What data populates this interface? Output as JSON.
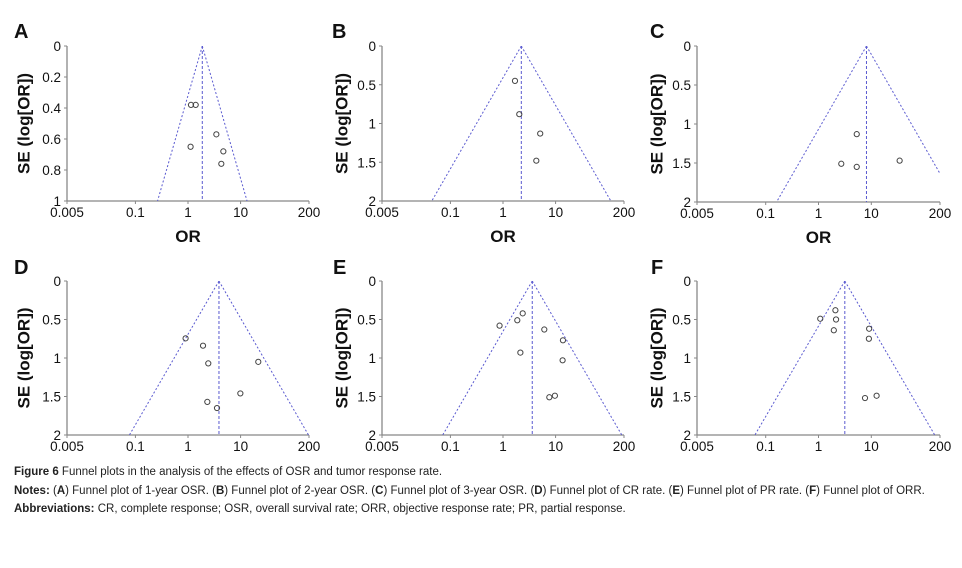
{
  "colors": {
    "funnel": "#5a5ad0",
    "axis": "#888888",
    "point": "#444444",
    "text": "#111111"
  },
  "chart_data": [
    {
      "type": "scatter",
      "panel": "A",
      "xlabel": "OR",
      "ylabel": "SE (log[OR])",
      "x_scale": "log",
      "y_inverted": true,
      "xlim": [
        0.005,
        200
      ],
      "ylim": [
        0,
        1
      ],
      "xticks": [
        "0.005",
        "0.1",
        "1",
        "10",
        "200"
      ],
      "yticks": [
        "0",
        "0.2",
        "0.4",
        "0.6",
        "0.8",
        "1"
      ],
      "summary_or": 1.87,
      "points": [
        {
          "or": 1.14,
          "se": 0.38
        },
        {
          "or": 1.4,
          "se": 0.38
        },
        {
          "or": 3.46,
          "se": 0.57
        },
        {
          "or": 1.12,
          "se": 0.65
        },
        {
          "or": 4.7,
          "se": 0.68
        },
        {
          "or": 4.3,
          "se": 0.76
        }
      ]
    },
    {
      "type": "scatter",
      "panel": "B",
      "xlabel": "OR",
      "ylabel": "SE (log[OR])",
      "x_scale": "log",
      "y_inverted": true,
      "xlim": [
        0.005,
        200
      ],
      "ylim": [
        0,
        2
      ],
      "xticks": [
        "0.005",
        "0.1",
        "1",
        "10",
        "200"
      ],
      "yticks": [
        "0",
        "0.5",
        "1",
        "1.5",
        "2"
      ],
      "summary_or": 2.23,
      "points": [
        {
          "or": 1.69,
          "se": 0.45
        },
        {
          "or": 2.04,
          "se": 0.88
        },
        {
          "or": 5.1,
          "se": 1.13
        },
        {
          "or": 4.3,
          "se": 1.48
        }
      ]
    },
    {
      "type": "scatter",
      "panel": "C",
      "xlabel": "OR",
      "ylabel": "SE (log[OR])",
      "x_scale": "log",
      "y_inverted": true,
      "xlim": [
        0.005,
        200
      ],
      "ylim": [
        0,
        2
      ],
      "xticks": [
        "0.005",
        "0.1",
        "1",
        "10",
        "200"
      ],
      "yticks": [
        "0",
        "0.5",
        "1",
        "1.5",
        "2"
      ],
      "summary_or": 8.1,
      "points": [
        {
          "or": 5.3,
          "se": 1.13
        },
        {
          "or": 2.7,
          "se": 1.51
        },
        {
          "or": 5.3,
          "se": 1.55
        },
        {
          "or": 34.4,
          "se": 1.47
        }
      ]
    },
    {
      "type": "scatter",
      "panel": "D",
      "xlabel": "OR",
      "ylabel": "SE (log[OR])",
      "x_scale": "log",
      "y_inverted": true,
      "xlim": [
        0.005,
        200
      ],
      "ylim": [
        0,
        2
      ],
      "xticks": [
        "0.005",
        "0.1",
        "1",
        "10",
        "200"
      ],
      "yticks": [
        "0",
        "0.5",
        "1",
        "1.5",
        "2"
      ],
      "summary_or": 3.88,
      "points": [
        {
          "or": 0.9,
          "se": 0.745
        },
        {
          "or": 1.93,
          "se": 0.84
        },
        {
          "or": 2.43,
          "se": 1.07
        },
        {
          "or": 21.7,
          "se": 1.05
        },
        {
          "or": 9.9,
          "se": 1.46
        },
        {
          "or": 2.33,
          "se": 1.57
        },
        {
          "or": 3.56,
          "se": 1.65
        }
      ]
    },
    {
      "type": "scatter",
      "panel": "E",
      "xlabel": "OR",
      "ylabel": "SE (log[OR])",
      "x_scale": "log",
      "y_inverted": true,
      "xlim": [
        0.005,
        200
      ],
      "ylim": [
        0,
        2
      ],
      "xticks": [
        "0.005",
        "0.1",
        "1",
        "10",
        "200"
      ],
      "yticks": [
        "0",
        "0.5",
        "1",
        "1.5",
        "2"
      ],
      "summary_or": 3.6,
      "points": [
        {
          "or": 0.86,
          "se": 0.58
        },
        {
          "or": 1.87,
          "se": 0.51
        },
        {
          "or": 2.37,
          "se": 0.42
        },
        {
          "or": 2.14,
          "se": 0.93
        },
        {
          "or": 6.1,
          "se": 0.63
        },
        {
          "or": 13.8,
          "se": 0.77
        },
        {
          "or": 13.6,
          "se": 1.03
        },
        {
          "or": 7.6,
          "se": 1.51
        },
        {
          "or": 9.7,
          "se": 1.49
        }
      ]
    },
    {
      "type": "scatter",
      "panel": "F",
      "xlabel": "OR",
      "ylabel": "SE (log[OR])",
      "x_scale": "log",
      "y_inverted": true,
      "xlim": [
        0.005,
        200
      ],
      "ylim": [
        0,
        2
      ],
      "xticks": [
        "0.005",
        "0.1",
        "1",
        "10",
        "200"
      ],
      "yticks": [
        "0",
        "0.5",
        "1",
        "1.5",
        "2"
      ],
      "summary_or": 3.15,
      "points": [
        {
          "or": 1.08,
          "se": 0.49
        },
        {
          "or": 2.09,
          "se": 0.38
        },
        {
          "or": 2.15,
          "se": 0.5
        },
        {
          "or": 1.95,
          "se": 0.64
        },
        {
          "or": 9.1,
          "se": 0.62
        },
        {
          "or": 9.0,
          "se": 0.75
        },
        {
          "or": 7.6,
          "se": 1.52
        },
        {
          "or": 12.6,
          "se": 1.49
        }
      ]
    }
  ],
  "caption": {
    "figure_label": "Figure 6",
    "figure_text": " Funnel plots in the analysis of the effects of OSR and tumor response rate.",
    "notes_label": "Notes:",
    "notes_parts": [
      " (",
      "A",
      ") Funnel plot of 1-year OSR. (",
      "B",
      ") Funnel plot of 2-year OSR. (",
      "C",
      ") Funnel plot of 3-year OSR. (",
      "D",
      ") Funnel plot of CR rate. (",
      "E",
      ") Funnel plot of PR rate. (",
      "F",
      ") Funnel plot of ORR."
    ],
    "abbrev_label": "Abbreviations:",
    "abbrev_text": " CR, complete response; OSR, overall survival rate; ORR, objective response rate; PR, partial response."
  }
}
